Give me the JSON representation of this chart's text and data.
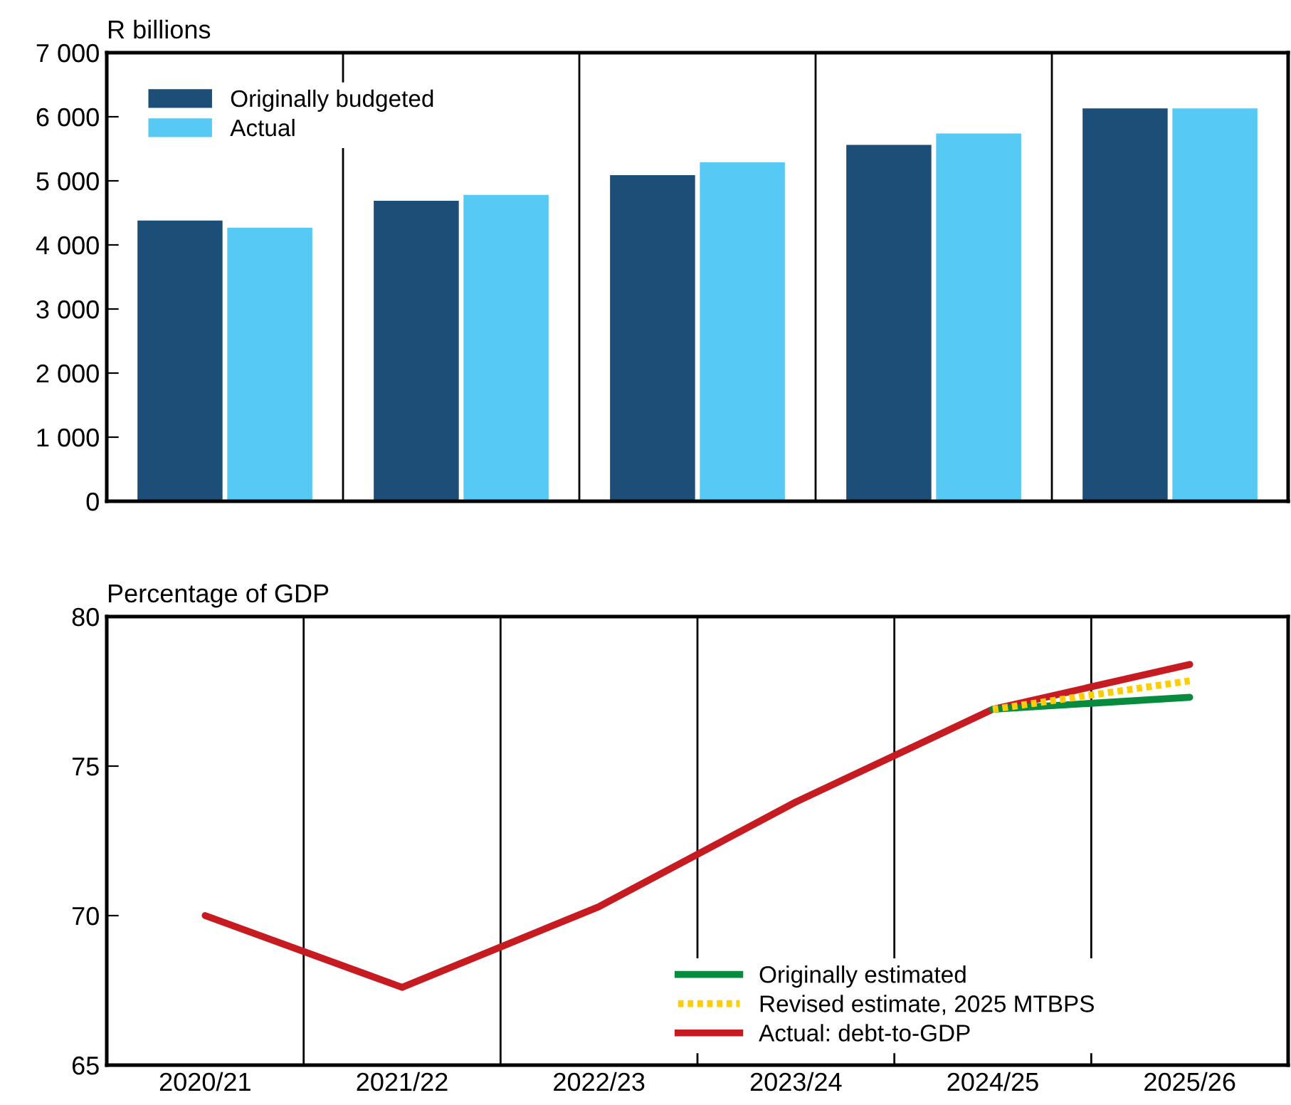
{
  "chart_data": [
    {
      "type": "bar",
      "ylabel": "R billions",
      "categories": [
        null,
        null,
        null,
        null,
        null
      ],
      "series": [
        {
          "name": "Originally budgeted",
          "color": "#1c4e77",
          "values": [
            4380,
            4690,
            5090,
            5560,
            6130
          ]
        },
        {
          "name": "Actual",
          "color": "#56c9f4",
          "values": [
            4270,
            4780,
            5290,
            5740,
            6130
          ]
        }
      ],
      "ylim": [
        0,
        7000
      ],
      "yticks": [
        0,
        {
          "value": 1000,
          "label": "1 000"
        },
        {
          "value": 2000,
          "label": "2 000"
        },
        {
          "value": 3000,
          "label": "3 000"
        },
        {
          "value": 4000,
          "label": "4 000"
        },
        {
          "value": 5000,
          "label": "5 000"
        },
        {
          "value": 6000,
          "label": "6 000"
        },
        {
          "value": 7000,
          "label": "7 000"
        }
      ],
      "grid": "x",
      "legend": "top left",
      "tick_labels": "y"
    },
    {
      "type": "line",
      "ylabel": "Percentage of GDP",
      "categories": [
        "2020/21",
        "2021/22",
        "2022/23",
        "2023/24",
        "2024/25",
        "2025/26"
      ],
      "series": [
        {
          "name": "Originally estimated",
          "color": "#078b3e",
          "values": [
            null,
            null,
            null,
            null,
            76.9,
            77.3
          ]
        },
        {
          "name": "Revised estimate, 2025 MTBPS",
          "color": "#fdcd0a",
          "line_style": "dotted",
          "values": [
            null,
            null,
            null,
            null,
            76.9,
            77.85
          ]
        },
        {
          "name": "Actual: debt-to-GDP",
          "color": "#c71b22",
          "values": [
            70.0,
            67.6,
            70.3,
            73.8,
            76.9,
            78.4
          ]
        }
      ],
      "ylim": [
        65,
        80
      ],
      "yticks": [
        65,
        70,
        75,
        80
      ],
      "grid": "x",
      "legend": "bottom",
      "line_style": "solid"
    }
  ]
}
